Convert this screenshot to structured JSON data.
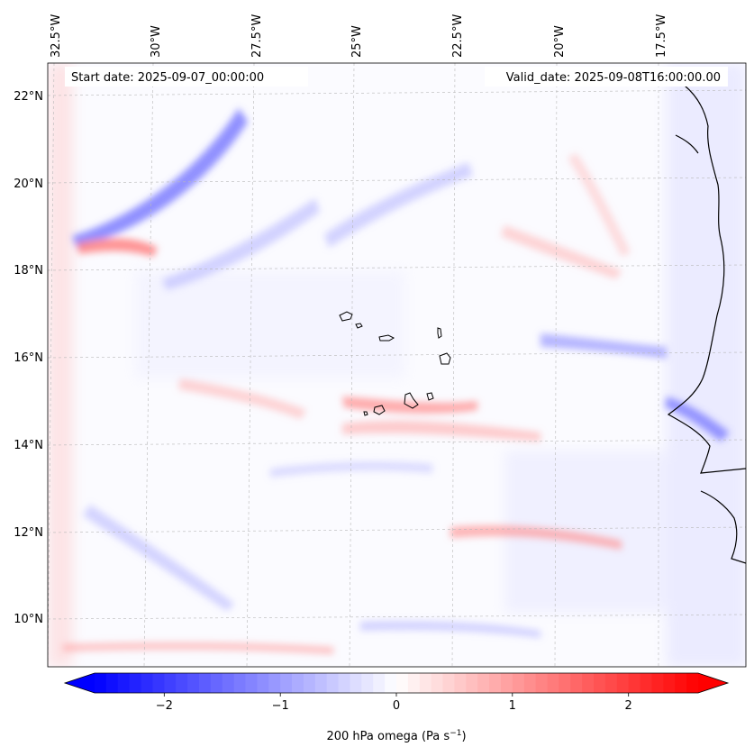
{
  "map": {
    "start_date": "Start date: 2025-09-07_00:00:00",
    "valid_date": "Valid_date: 2025-09-08T16:00:00.00",
    "lon_labels": [
      "32.5°W",
      "30°W",
      "27.5°W",
      "25°W",
      "22.5°W",
      "20°W",
      "17.5°W"
    ],
    "lat_labels": [
      "22°N",
      "20°N",
      "18°N",
      "16°N",
      "14°N",
      "12°N",
      "10°N"
    ],
    "variable": "200 hPa omega",
    "units_base": "Pa s",
    "units_exp": "−1"
  },
  "colorbar": {
    "ticks": [
      "−2",
      "−1",
      "0",
      "1",
      "2"
    ],
    "tick_values": [
      -2,
      -1,
      0,
      1,
      2
    ],
    "range": [
      -2.6,
      2.6
    ],
    "negative_color": "#0000ff",
    "positive_color": "#ff0000",
    "neutral_color": "#ffffff"
  }
}
